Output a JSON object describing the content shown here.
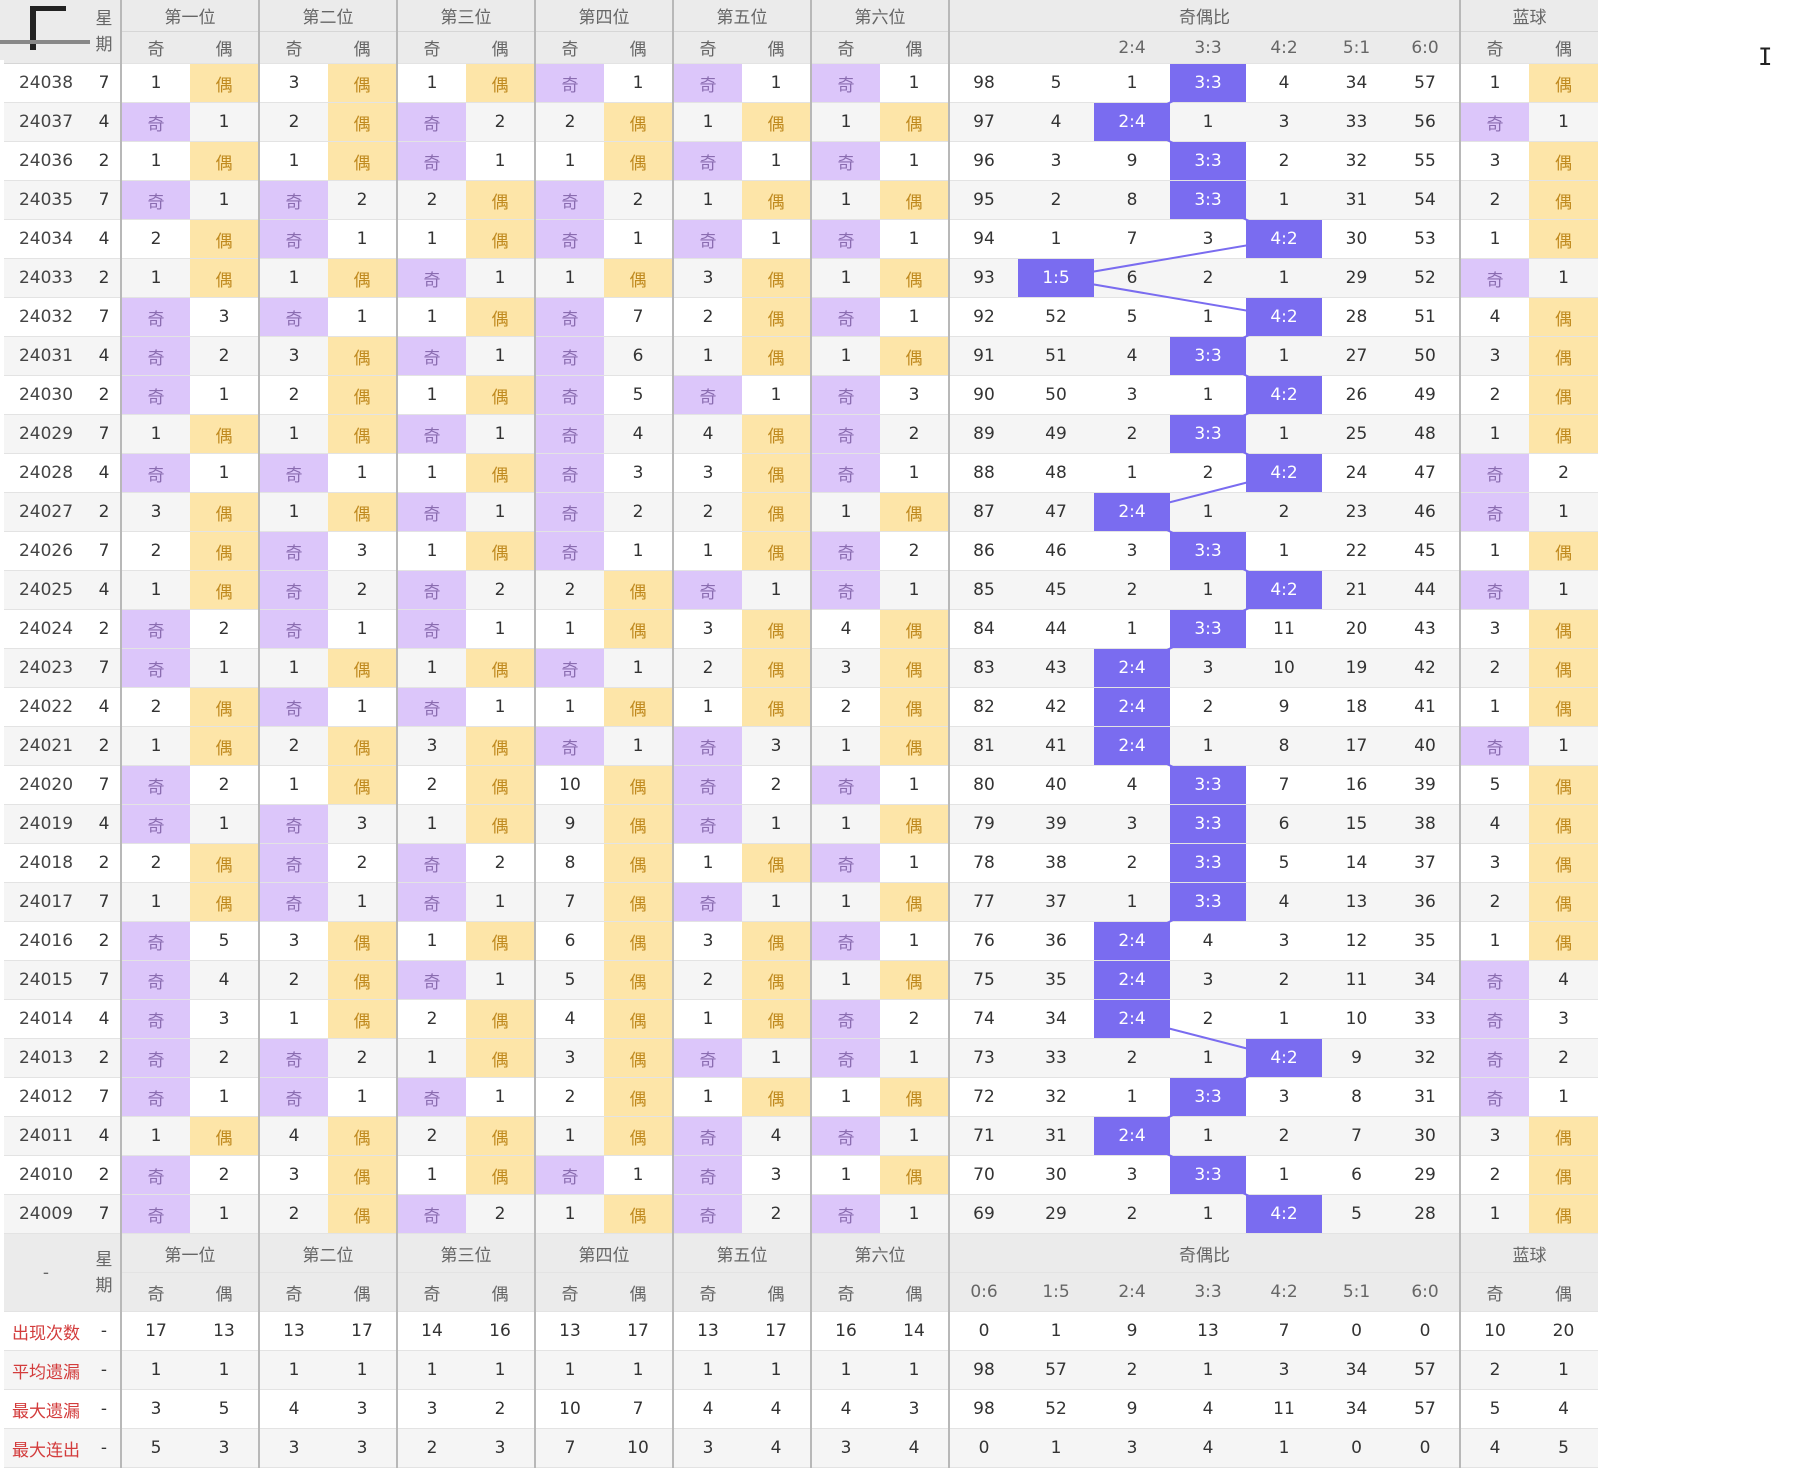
{
  "header": {
    "period_label": "星期",
    "groups": [
      "第一位",
      "第二位",
      "第三位",
      "第四位",
      "第五位",
      "第六位"
    ],
    "ratio_group": "奇偶比",
    "blue_group": "蓝球",
    "odd": "奇",
    "even": "偶",
    "ratio_cols_top": [
      "",
      "",
      "2:4",
      "3:3",
      "4:2",
      "5:1",
      "6:0"
    ],
    "ratio_cols": [
      "0:6",
      "1:5",
      "2:4",
      "3:3",
      "4:2",
      "5:1",
      "6:0"
    ],
    "footer_corner": "-"
  },
  "rows": [
    {
      "p": "24038",
      "w": "7",
      "pos": [
        [
          1,
          "e"
        ],
        [
          3,
          "e"
        ],
        [
          1,
          "e"
        ],
        [
          "o",
          1
        ],
        [
          "o",
          1
        ],
        [
          "o",
          1
        ]
      ],
      "r": [
        98,
        5,
        1,
        "H",
        4,
        34,
        57
      ],
      "b": [
        1,
        "e"
      ]
    },
    {
      "p": "24037",
      "w": "4",
      "pos": [
        [
          "o",
          1
        ],
        [
          2,
          "e"
        ],
        [
          "o",
          2
        ],
        [
          2,
          "e"
        ],
        [
          1,
          "e"
        ],
        [
          1,
          "e"
        ]
      ],
      "r": [
        97,
        4,
        "H",
        1,
        3,
        33,
        56
      ],
      "b": [
        "o",
        1
      ]
    },
    {
      "p": "24036",
      "w": "2",
      "pos": [
        [
          1,
          "e"
        ],
        [
          1,
          "e"
        ],
        [
          "o",
          1
        ],
        [
          1,
          "e"
        ],
        [
          "o",
          1
        ],
        [
          "o",
          1
        ]
      ],
      "r": [
        96,
        3,
        9,
        "H",
        2,
        32,
        55
      ],
      "b": [
        3,
        "e"
      ]
    },
    {
      "p": "24035",
      "w": "7",
      "pos": [
        [
          "o",
          1
        ],
        [
          "o",
          2
        ],
        [
          2,
          "e"
        ],
        [
          "o",
          2
        ],
        [
          1,
          "e"
        ],
        [
          1,
          "e"
        ]
      ],
      "r": [
        95,
        2,
        8,
        "H",
        1,
        31,
        54
      ],
      "b": [
        2,
        "e"
      ]
    },
    {
      "p": "24034",
      "w": "4",
      "pos": [
        [
          2,
          "e"
        ],
        [
          "o",
          1
        ],
        [
          1,
          "e"
        ],
        [
          "o",
          1
        ],
        [
          "o",
          1
        ],
        [
          "o",
          1
        ]
      ],
      "r": [
        94,
        1,
        7,
        3,
        "H",
        30,
        53
      ],
      "b": [
        1,
        "e"
      ]
    },
    {
      "p": "24033",
      "w": "2",
      "pos": [
        [
          1,
          "e"
        ],
        [
          1,
          "e"
        ],
        [
          "o",
          1
        ],
        [
          1,
          "e"
        ],
        [
          3,
          "e"
        ],
        [
          1,
          "e"
        ]
      ],
      "r": [
        93,
        "H",
        6,
        2,
        1,
        29,
        52
      ],
      "b": [
        "o",
        1
      ]
    },
    {
      "p": "24032",
      "w": "7",
      "pos": [
        [
          "o",
          3
        ],
        [
          "o",
          1
        ],
        [
          1,
          "e"
        ],
        [
          "o",
          7
        ],
        [
          2,
          "e"
        ],
        [
          "o",
          1
        ]
      ],
      "r": [
        92,
        52,
        5,
        1,
        "H",
        28,
        51
      ],
      "b": [
        4,
        "e"
      ]
    },
    {
      "p": "24031",
      "w": "4",
      "pos": [
        [
          "o",
          2
        ],
        [
          3,
          "e"
        ],
        [
          "o",
          1
        ],
        [
          "o",
          6
        ],
        [
          1,
          "e"
        ],
        [
          1,
          "e"
        ]
      ],
      "r": [
        91,
        51,
        4,
        "H",
        1,
        27,
        50
      ],
      "b": [
        3,
        "e"
      ]
    },
    {
      "p": "24030",
      "w": "2",
      "pos": [
        [
          "o",
          1
        ],
        [
          2,
          "e"
        ],
        [
          1,
          "e"
        ],
        [
          "o",
          5
        ],
        [
          "o",
          1
        ],
        [
          "o",
          3
        ]
      ],
      "r": [
        90,
        50,
        3,
        1,
        "H",
        26,
        49
      ],
      "b": [
        2,
        "e"
      ]
    },
    {
      "p": "24029",
      "w": "7",
      "pos": [
        [
          1,
          "e"
        ],
        [
          1,
          "e"
        ],
        [
          "o",
          1
        ],
        [
          "o",
          4
        ],
        [
          4,
          "e"
        ],
        [
          "o",
          2
        ]
      ],
      "r": [
        89,
        49,
        2,
        "H",
        1,
        25,
        48
      ],
      "b": [
        1,
        "e"
      ]
    },
    {
      "p": "24028",
      "w": "4",
      "pos": [
        [
          "o",
          1
        ],
        [
          "o",
          1
        ],
        [
          1,
          "e"
        ],
        [
          "o",
          3
        ],
        [
          3,
          "e"
        ],
        [
          "o",
          1
        ]
      ],
      "r": [
        88,
        48,
        1,
        2,
        "H",
        24,
        47
      ],
      "b": [
        "o",
        2
      ]
    },
    {
      "p": "24027",
      "w": "2",
      "pos": [
        [
          3,
          "e"
        ],
        [
          1,
          "e"
        ],
        [
          "o",
          1
        ],
        [
          "o",
          2
        ],
        [
          2,
          "e"
        ],
        [
          1,
          "e"
        ]
      ],
      "r": [
        87,
        47,
        "H",
        1,
        2,
        23,
        46
      ],
      "b": [
        "o",
        1
      ]
    },
    {
      "p": "24026",
      "w": "7",
      "pos": [
        [
          2,
          "e"
        ],
        [
          "o",
          3
        ],
        [
          1,
          "e"
        ],
        [
          "o",
          1
        ],
        [
          1,
          "e"
        ],
        [
          "o",
          2
        ]
      ],
      "r": [
        86,
        46,
        3,
        "H",
        1,
        22,
        45
      ],
      "b": [
        1,
        "e"
      ]
    },
    {
      "p": "24025",
      "w": "4",
      "pos": [
        [
          1,
          "e"
        ],
        [
          "o",
          2
        ],
        [
          "o",
          2
        ],
        [
          2,
          "e"
        ],
        [
          "o",
          1
        ],
        [
          "o",
          1
        ]
      ],
      "r": [
        85,
        45,
        2,
        1,
        "H",
        21,
        44
      ],
      "b": [
        "o",
        1
      ]
    },
    {
      "p": "24024",
      "w": "2",
      "pos": [
        [
          "o",
          2
        ],
        [
          "o",
          1
        ],
        [
          "o",
          1
        ],
        [
          1,
          "e"
        ],
        [
          3,
          "e"
        ],
        [
          4,
          "e"
        ]
      ],
      "r": [
        84,
        44,
        1,
        "H",
        11,
        20,
        43
      ],
      "b": [
        3,
        "e"
      ]
    },
    {
      "p": "24023",
      "w": "7",
      "pos": [
        [
          "o",
          1
        ],
        [
          1,
          "e"
        ],
        [
          1,
          "e"
        ],
        [
          "o",
          1
        ],
        [
          2,
          "e"
        ],
        [
          3,
          "e"
        ]
      ],
      "r": [
        83,
        43,
        "H",
        3,
        10,
        19,
        42
      ],
      "b": [
        2,
        "e"
      ]
    },
    {
      "p": "24022",
      "w": "4",
      "pos": [
        [
          2,
          "e"
        ],
        [
          "o",
          1
        ],
        [
          "o",
          1
        ],
        [
          1,
          "e"
        ],
        [
          1,
          "e"
        ],
        [
          2,
          "e"
        ]
      ],
      "r": [
        82,
        42,
        "H",
        2,
        9,
        18,
        41
      ],
      "b": [
        1,
        "e"
      ]
    },
    {
      "p": "24021",
      "w": "2",
      "pos": [
        [
          1,
          "e"
        ],
        [
          2,
          "e"
        ],
        [
          3,
          "e"
        ],
        [
          "o",
          1
        ],
        [
          "o",
          3
        ],
        [
          1,
          "e"
        ]
      ],
      "r": [
        81,
        41,
        "H",
        1,
        8,
        17,
        40
      ],
      "b": [
        "o",
        1
      ]
    },
    {
      "p": "24020",
      "w": "7",
      "pos": [
        [
          "o",
          2
        ],
        [
          1,
          "e"
        ],
        [
          2,
          "e"
        ],
        [
          10,
          "e"
        ],
        [
          "o",
          2
        ],
        [
          "o",
          1
        ]
      ],
      "r": [
        80,
        40,
        4,
        "H",
        7,
        16,
        39
      ],
      "b": [
        5,
        "e"
      ]
    },
    {
      "p": "24019",
      "w": "4",
      "pos": [
        [
          "o",
          1
        ],
        [
          "o",
          3
        ],
        [
          1,
          "e"
        ],
        [
          9,
          "e"
        ],
        [
          "o",
          1
        ],
        [
          1,
          "e"
        ]
      ],
      "r": [
        79,
        39,
        3,
        "H",
        6,
        15,
        38
      ],
      "b": [
        4,
        "e"
      ]
    },
    {
      "p": "24018",
      "w": "2",
      "pos": [
        [
          2,
          "e"
        ],
        [
          "o",
          2
        ],
        [
          "o",
          2
        ],
        [
          8,
          "e"
        ],
        [
          1,
          "e"
        ],
        [
          "o",
          1
        ]
      ],
      "r": [
        78,
        38,
        2,
        "H",
        5,
        14,
        37
      ],
      "b": [
        3,
        "e"
      ]
    },
    {
      "p": "24017",
      "w": "7",
      "pos": [
        [
          1,
          "e"
        ],
        [
          "o",
          1
        ],
        [
          "o",
          1
        ],
        [
          7,
          "e"
        ],
        [
          "o",
          1
        ],
        [
          1,
          "e"
        ]
      ],
      "r": [
        77,
        37,
        1,
        "H",
        4,
        13,
        36
      ],
      "b": [
        2,
        "e"
      ]
    },
    {
      "p": "24016",
      "w": "2",
      "pos": [
        [
          "o",
          5
        ],
        [
          3,
          "e"
        ],
        [
          1,
          "e"
        ],
        [
          6,
          "e"
        ],
        [
          3,
          "e"
        ],
        [
          "o",
          1
        ]
      ],
      "r": [
        76,
        36,
        "H",
        4,
        3,
        12,
        35
      ],
      "b": [
        1,
        "e"
      ]
    },
    {
      "p": "24015",
      "w": "7",
      "pos": [
        [
          "o",
          4
        ],
        [
          2,
          "e"
        ],
        [
          "o",
          1
        ],
        [
          5,
          "e"
        ],
        [
          2,
          "e"
        ],
        [
          1,
          "e"
        ]
      ],
      "r": [
        75,
        35,
        "H",
        3,
        2,
        11,
        34
      ],
      "b": [
        "o",
        4
      ]
    },
    {
      "p": "24014",
      "w": "4",
      "pos": [
        [
          "o",
          3
        ],
        [
          1,
          "e"
        ],
        [
          2,
          "e"
        ],
        [
          4,
          "e"
        ],
        [
          1,
          "e"
        ],
        [
          "o",
          2
        ]
      ],
      "r": [
        74,
        34,
        "H",
        2,
        1,
        10,
        33
      ],
      "b": [
        "o",
        3
      ]
    },
    {
      "p": "24013",
      "w": "2",
      "pos": [
        [
          "o",
          2
        ],
        [
          "o",
          2
        ],
        [
          1,
          "e"
        ],
        [
          3,
          "e"
        ],
        [
          "o",
          1
        ],
        [
          "o",
          1
        ]
      ],
      "r": [
        73,
        33,
        2,
        1,
        "H",
        9,
        32
      ],
      "b": [
        "o",
        2
      ]
    },
    {
      "p": "24012",
      "w": "7",
      "pos": [
        [
          "o",
          1
        ],
        [
          "o",
          1
        ],
        [
          "o",
          1
        ],
        [
          2,
          "e"
        ],
        [
          1,
          "e"
        ],
        [
          1,
          "e"
        ]
      ],
      "r": [
        72,
        32,
        1,
        "H",
        3,
        8,
        31
      ],
      "b": [
        "o",
        1
      ]
    },
    {
      "p": "24011",
      "w": "4",
      "pos": [
        [
          1,
          "e"
        ],
        [
          4,
          "e"
        ],
        [
          2,
          "e"
        ],
        [
          1,
          "e"
        ],
        [
          "o",
          4
        ],
        [
          "o",
          1
        ]
      ],
      "r": [
        71,
        31,
        "H",
        1,
        2,
        7,
        30
      ],
      "b": [
        3,
        "e"
      ]
    },
    {
      "p": "24010",
      "w": "2",
      "pos": [
        [
          "o",
          2
        ],
        [
          3,
          "e"
        ],
        [
          1,
          "e"
        ],
        [
          "o",
          1
        ],
        [
          "o",
          3
        ],
        [
          1,
          "e"
        ]
      ],
      "r": [
        70,
        30,
        3,
        "H",
        1,
        6,
        29
      ],
      "b": [
        2,
        "e"
      ]
    },
    {
      "p": "24009",
      "w": "7",
      "pos": [
        [
          "o",
          1
        ],
        [
          2,
          "e"
        ],
        [
          "o",
          2
        ],
        [
          1,
          "e"
        ],
        [
          "o",
          2
        ],
        [
          "o",
          1
        ]
      ],
      "r": [
        69,
        29,
        2,
        1,
        "H",
        5,
        28
      ],
      "b": [
        1,
        "e"
      ]
    }
  ],
  "stats": [
    {
      "label": "出现次数",
      "dash": "-",
      "values": [
        17,
        13,
        13,
        17,
        14,
        16,
        13,
        17,
        13,
        17,
        16,
        14,
        0,
        1,
        9,
        13,
        7,
        0,
        0,
        10,
        20
      ],
      "tone": "red"
    },
    {
      "label": "平均遗漏",
      "dash": "-",
      "values": [
        1,
        1,
        1,
        1,
        1,
        1,
        1,
        1,
        1,
        1,
        1,
        1,
        98,
        57,
        2,
        1,
        3,
        34,
        57,
        2,
        1
      ],
      "tone": "red"
    },
    {
      "label": "最大遗漏",
      "dash": "-",
      "values": [
        3,
        5,
        4,
        3,
        3,
        2,
        10,
        7,
        4,
        4,
        4,
        3,
        98,
        52,
        9,
        4,
        11,
        34,
        57,
        5,
        4
      ],
      "tone": "blue"
    },
    {
      "label": "最大连出",
      "dash": "-",
      "values": [
        5,
        3,
        3,
        3,
        2,
        3,
        7,
        10,
        3,
        4,
        3,
        4,
        0,
        1,
        3,
        4,
        1,
        0,
        0,
        4,
        5
      ],
      "tone": "dark"
    }
  ],
  "colors": {
    "odd": "#dcc6fa",
    "even": "#fde5a8",
    "hit": "#7a6cf0",
    "line": "#7a6cf0"
  }
}
